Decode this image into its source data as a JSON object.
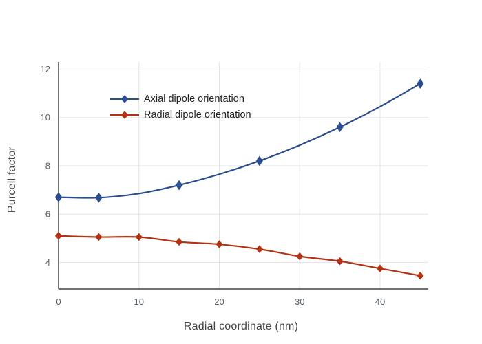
{
  "chart_data": {
    "type": "line",
    "title": "",
    "xlabel": "Radial coordinate (nm)",
    "ylabel": "Purcell factor",
    "xlim": [
      0,
      46
    ],
    "ylim": [
      2.9,
      12.3
    ],
    "xticks": [
      0,
      10,
      20,
      30,
      40
    ],
    "yticks": [
      4,
      6,
      8,
      10,
      12
    ],
    "grid": true,
    "legend_position": "top-left-inside",
    "series": [
      {
        "name": "Axial dipole orientation",
        "color": "#2a4d8f",
        "marker": "diamond",
        "x": [
          0,
          5,
          10,
          15,
          20,
          25,
          30,
          35,
          40,
          45
        ],
        "y": [
          6.7,
          6.68,
          6.85,
          7.2,
          7.65,
          8.2,
          8.85,
          9.6,
          10.45,
          11.4
        ],
        "marker_x": [
          0,
          5,
          15,
          25,
          35,
          45
        ],
        "marker_y": [
          6.7,
          6.68,
          7.2,
          8.2,
          9.6,
          11.4
        ]
      },
      {
        "name": "Radial dipole orientation",
        "color": "#b23314",
        "marker": "diamond",
        "x": [
          0,
          5,
          10,
          15,
          20,
          25,
          30,
          35,
          40,
          45
        ],
        "y": [
          5.1,
          5.05,
          5.05,
          4.85,
          4.75,
          4.55,
          4.25,
          4.05,
          3.75,
          3.45
        ],
        "marker_x": [
          0,
          5,
          10,
          15,
          20,
          25,
          30,
          35,
          40,
          45
        ],
        "marker_y": [
          5.1,
          5.05,
          5.05,
          4.85,
          4.75,
          4.55,
          4.25,
          4.05,
          3.75,
          3.45
        ]
      }
    ],
    "axis_color": "#444444",
    "grid_color": "#e3e3e3"
  }
}
